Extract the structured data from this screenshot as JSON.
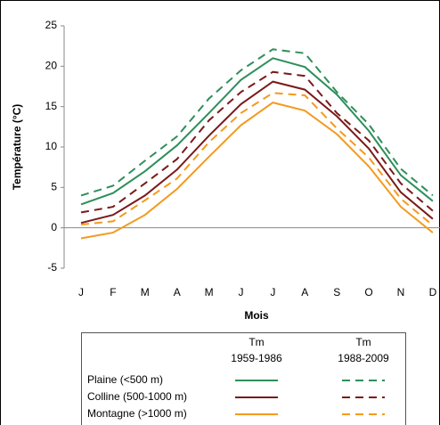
{
  "chart_data": {
    "type": "line",
    "y_label": "Température (°C)",
    "x_label": "Mois",
    "categories": [
      "J",
      "F",
      "M",
      "A",
      "M",
      "J",
      "J",
      "A",
      "S",
      "O",
      "N",
      "D"
    ],
    "ylim": [
      -5,
      25
    ],
    "yticks": [
      -5,
      0,
      5,
      10,
      15,
      20,
      25
    ],
    "periods": [
      {
        "label": "Tm",
        "years": "1959-1986",
        "dashed": false
      },
      {
        "label": "Tm",
        "years": "1988-2009",
        "dashed": true
      }
    ],
    "series": [
      {
        "name": "Plaine (<500 m)",
        "color": "#2e8f5a",
        "values": [
          [
            2.9,
            4.3,
            7,
            10.2,
            14.2,
            18.3,
            21,
            19.9,
            16.5,
            12,
            6.5,
            3.3
          ],
          [
            4,
            5.2,
            8.3,
            11.3,
            16,
            19.5,
            22.1,
            21.6,
            16.8,
            12.8,
            7.3,
            4
          ]
        ]
      },
      {
        "name": "Colline (500-1000 m)",
        "color": "#7b1a1a",
        "values": [
          [
            0.6,
            1.6,
            4,
            7.2,
            11.4,
            15.3,
            18.1,
            17.1,
            13.8,
            9.8,
            4.4,
            1.1
          ],
          [
            1.9,
            2.6,
            5.5,
            8.5,
            13.3,
            16.8,
            19.3,
            18.8,
            14.2,
            10.8,
            5.5,
            2.1
          ]
        ]
      },
      {
        "name": "Montagne (>1000 m)",
        "color": "#f39a1e",
        "values": [
          [
            -1.3,
            -0.6,
            1.6,
            4.8,
            8.8,
            12.7,
            15.5,
            14.5,
            11.6,
            7.6,
            2.6,
            -0.6
          ],
          [
            0.4,
            0.8,
            3.4,
            6.1,
            10.6,
            14.2,
            16.7,
            16.4,
            12.3,
            8.7,
            3.6,
            0.3
          ]
        ]
      }
    ]
  }
}
